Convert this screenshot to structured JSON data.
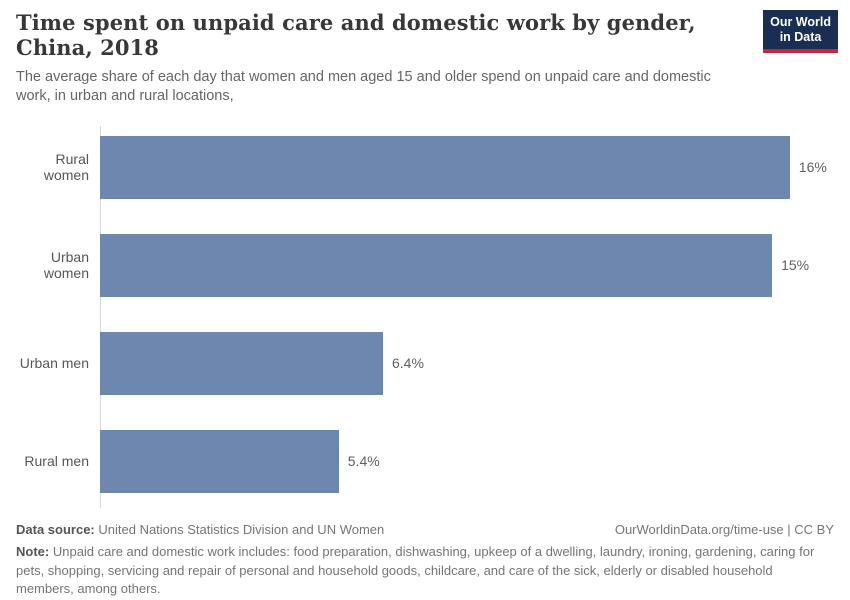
{
  "header": {
    "title": "Time spent on unpaid care and domestic work by gender, China, 2018",
    "subtitle": "The average share of each day that women and men aged 15 and older spend on unpaid care and domestic work, in urban and rural locations,",
    "logo_line1": "Our World",
    "logo_line2": "in Data"
  },
  "chart_data": {
    "type": "bar",
    "orientation": "horizontal",
    "title": "Time spent on unpaid care and domestic work by gender, China, 2018",
    "categories": [
      "Rural women",
      "Urban women",
      "Urban men",
      "Rural men"
    ],
    "values": [
      16,
      15,
      6.4,
      5.4
    ],
    "values_estimated_from_bar_lengths": [
      15.6,
      15.2,
      6.4,
      5.4
    ],
    "value_labels": [
      "16%",
      "15%",
      "6.4%",
      "5.4%"
    ],
    "unit": "%",
    "xlim": [
      0,
      16.6
    ],
    "grid": false,
    "legend": "none",
    "bar_color": "#6d87ae"
  },
  "footer": {
    "source_label": "Data source:",
    "source_text": "United Nations Statistics Division and UN Women",
    "credit": "OurWorldinData.org/time-use | CC BY",
    "note_label": "Note:",
    "note_text": "Unpaid care and domestic work includes: food preparation, dishwashing, upkeep of a dwelling, laundry, ironing, gardening, caring for pets, shopping, servicing and repair of personal and household goods, childcare, and care of the sick, elderly or disabled household members, among others."
  },
  "colors": {
    "bar": "#6d87ae",
    "logo_background": "#1a2e54",
    "logo_accent_red": "#c0293a",
    "title_text": "#383838",
    "axis_line": "#d9d9d9"
  }
}
